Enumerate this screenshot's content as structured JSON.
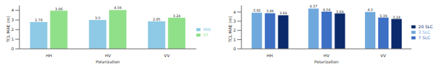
{
  "chart_data": [
    {
      "type": "bar",
      "categories": [
        "HH",
        "HV",
        "VV"
      ],
      "x_label": "Polarization",
      "y_label": "TCL MAE (m)",
      "ylim": [
        0,
        4.5
      ],
      "yticks": [
        0,
        1,
        2,
        3,
        4
      ],
      "legend": "right",
      "data_labels": true,
      "series": [
        {
          "name": "MW",
          "color": "#8ecae6",
          "values": [
            2.78,
            3.0,
            2.85
          ],
          "value_labels": [
            "2.78",
            "3.0",
            "2.85"
          ]
        },
        {
          "name": "ST",
          "color": "#90e08a",
          "values": [
            3.96,
            4.04,
            3.24
          ]
        }
      ]
    },
    {
      "type": "bar",
      "categories": [
        "HH",
        "HV",
        "VV"
      ],
      "x_label": "Polarization",
      "y_label": "TCL MAE (m)",
      "ylim": [
        0,
        4.7
      ],
      "yticks": [
        0,
        1,
        2,
        3,
        4
      ],
      "legend": "right",
      "data_labels": true,
      "series": [
        {
          "name": "3 SLC",
          "color": "#6fa8dc",
          "values": [
            3.92,
            4.37,
            4.0
          ],
          "value_labels": [
            "3.92",
            "4.37",
            "4.0"
          ]
        },
        {
          "name": "7 SLC",
          "color": "#3d6fc4",
          "values": [
            3.86,
            4.04,
            3.39
          ]
        },
        {
          "name": "20 SLC",
          "color": "#0b2a6b",
          "values": [
            3.64,
            3.84,
            3.24
          ]
        }
      ]
    }
  ]
}
